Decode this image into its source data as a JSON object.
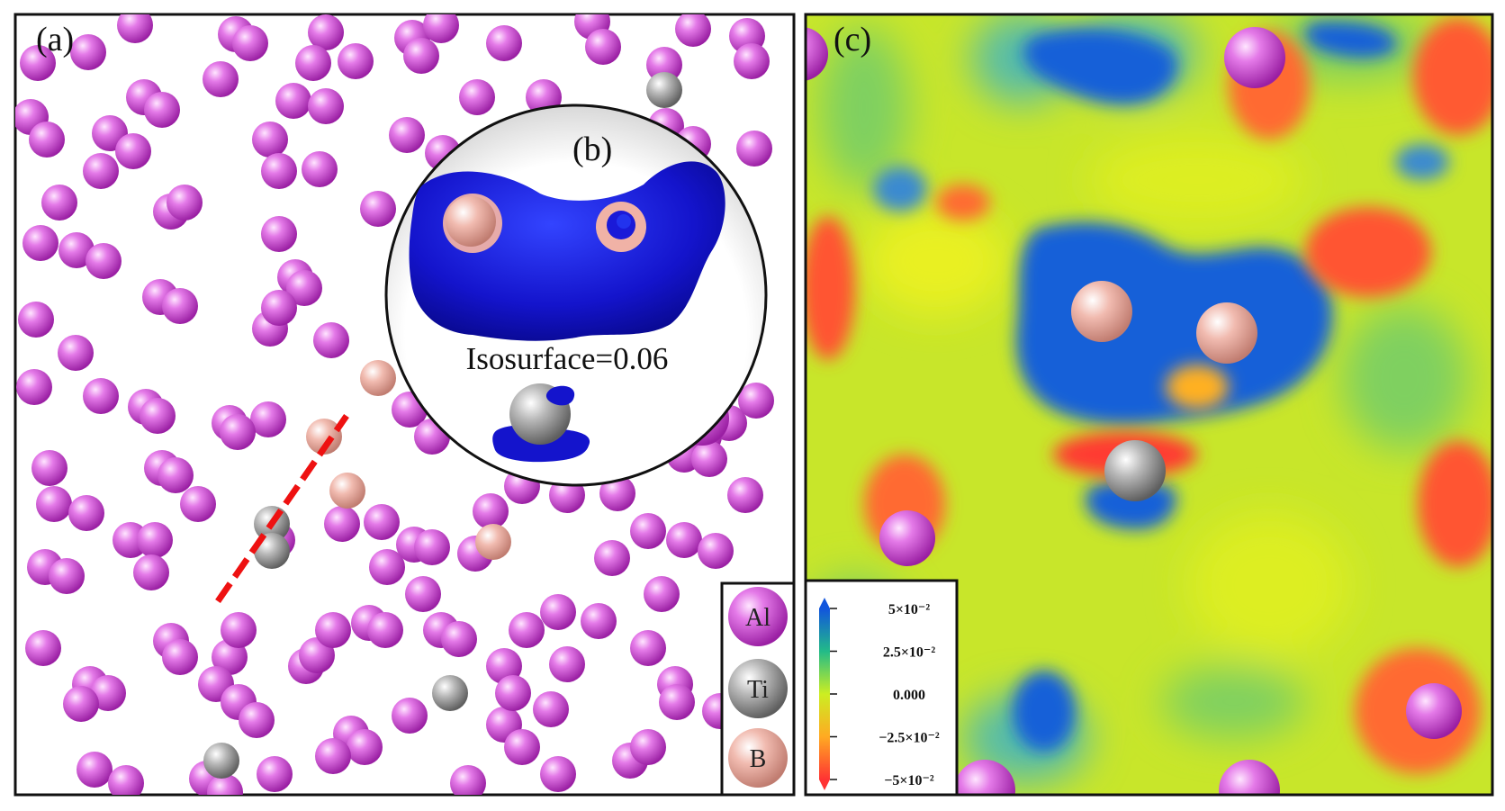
{
  "panels": {
    "a": {
      "label": "(a)"
    },
    "b": {
      "label": "(b)",
      "isosurface_text": "Isosurface=0.06"
    },
    "c": {
      "label": "(c)"
    }
  },
  "legend": {
    "items": [
      {
        "symbol": "Al",
        "color": "#d24fd8"
      },
      {
        "symbol": "Ti",
        "color": "#a9a9a9"
      },
      {
        "symbol": "B",
        "color": "#f0b2a6"
      }
    ]
  },
  "colorbar": {
    "ticks": [
      "5×10⁻²",
      "2.5×10⁻²",
      "0.000",
      "−2.5×10⁻²",
      "−5×10⁻²"
    ],
    "colors": [
      "#1155dd",
      "#22bb88",
      "#ccee22",
      "#ffaa22",
      "#ff3333"
    ]
  },
  "colors": {
    "al_atom": "#d24fd8",
    "ti_atom": "#a9a9a9",
    "b_atom": "#f0b2a6",
    "isosurface": "#1414cc",
    "boundary_line": "#ee1111"
  }
}
